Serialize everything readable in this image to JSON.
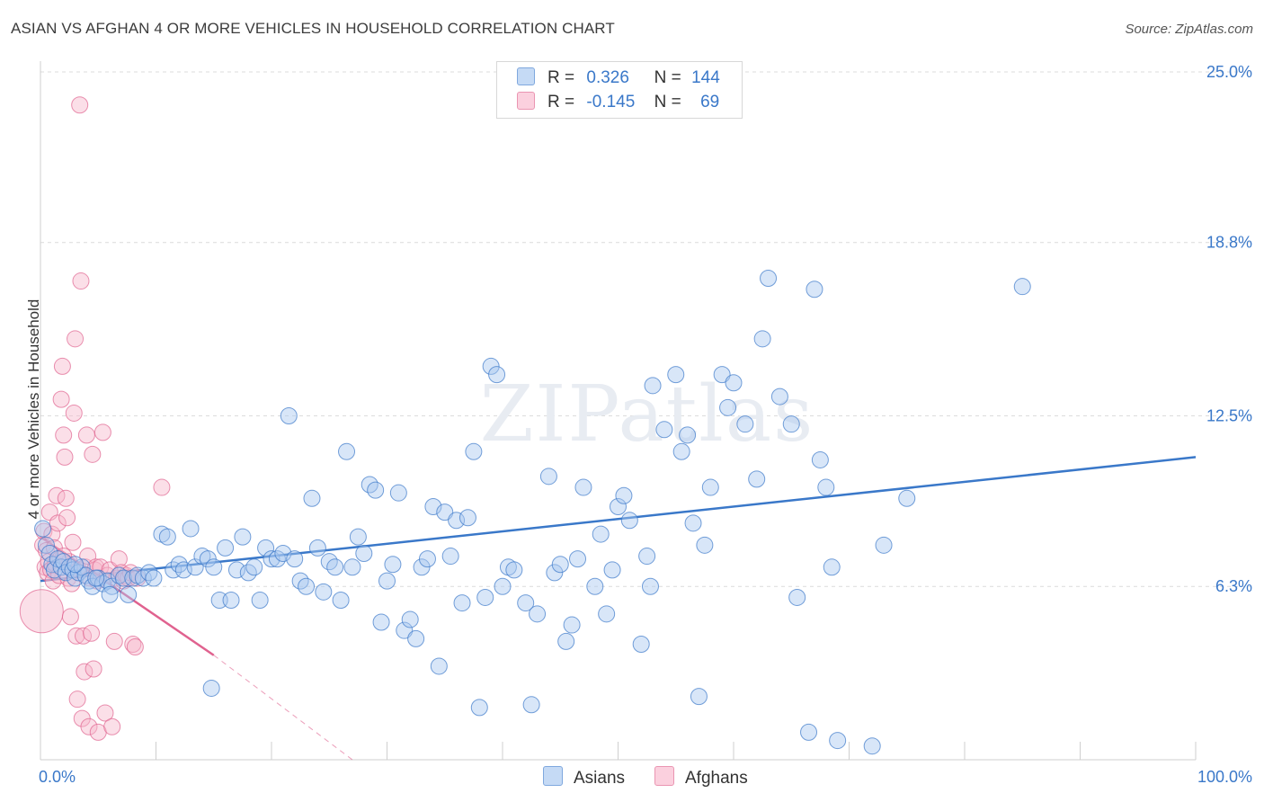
{
  "title": "ASIAN VS AFGHAN 4 OR MORE VEHICLES IN HOUSEHOLD CORRELATION CHART",
  "source": "Source: ZipAtlas.com",
  "watermark": "ZIPatlas",
  "legend": {
    "rows": [
      {
        "r_label": "R =",
        "r_value": "0.326",
        "n_label": "N =",
        "n_value": "144",
        "color": "#a9c8f0"
      },
      {
        "r_label": "R =",
        "r_value": "-0.145",
        "n_label": "N =",
        "n_value": "69",
        "color": "#f7b8cc"
      }
    ]
  },
  "bottom_legend": [
    {
      "label": "Asians",
      "color": "#a9c8f0"
    },
    {
      "label": "Afghans",
      "color": "#f7b8cc"
    }
  ],
  "chart_data": {
    "type": "scatter",
    "title": "ASIAN VS AFGHAN 4 OR MORE VEHICLES IN HOUSEHOLD CORRELATION CHART",
    "xlabel": "",
    "ylabel": "4 or more Vehicles in Household",
    "xlim": [
      0,
      100
    ],
    "ylim": [
      0,
      25.0
    ],
    "x_tick_labels": [
      "0.0%",
      "100.0%"
    ],
    "y_ticks": [
      6.3,
      12.5,
      18.8,
      25.0
    ],
    "y_tick_labels": [
      "6.3%",
      "12.5%",
      "18.8%",
      "25.0%"
    ],
    "grid": true,
    "series": [
      {
        "name": "Asians",
        "color": "#3a78c9",
        "fill": "#a9c8f0",
        "trend": {
          "x": [
            0,
            100
          ],
          "y": [
            6.5,
            11.0
          ]
        },
        "points": [
          [
            0.2,
            8.4
          ],
          [
            0.5,
            7.8
          ],
          [
            0.8,
            7.5
          ],
          [
            1.0,
            7.1
          ],
          [
            1.2,
            6.9
          ],
          [
            1.5,
            7.3
          ],
          [
            1.8,
            7.0
          ],
          [
            2.0,
            7.2
          ],
          [
            2.2,
            6.8
          ],
          [
            2.5,
            7.0
          ],
          [
            2.8,
            6.9
          ],
          [
            3.0,
            6.6
          ],
          [
            3.3,
            6.8
          ],
          [
            3.6,
            7.0
          ],
          [
            3.9,
            6.7
          ],
          [
            4.2,
            6.5
          ],
          [
            4.5,
            6.3
          ],
          [
            5.0,
            6.6
          ],
          [
            5.4,
            6.4
          ],
          [
            5.8,
            6.5
          ],
          [
            6.2,
            6.3
          ],
          [
            6.8,
            6.7
          ],
          [
            7.2,
            6.6
          ],
          [
            7.6,
            6.0
          ],
          [
            8.0,
            6.6
          ],
          [
            8.4,
            6.7
          ],
          [
            8.9,
            6.6
          ],
          [
            9.4,
            6.8
          ],
          [
            9.8,
            6.6
          ],
          [
            10.5,
            8.2
          ],
          [
            11.0,
            8.1
          ],
          [
            11.5,
            6.9
          ],
          [
            12.0,
            7.1
          ],
          [
            12.4,
            6.9
          ],
          [
            13.0,
            8.4
          ],
          [
            13.4,
            7.0
          ],
          [
            14.0,
            7.4
          ],
          [
            14.5,
            7.3
          ],
          [
            15.0,
            7.0
          ],
          [
            15.5,
            5.8
          ],
          [
            16.0,
            7.7
          ],
          [
            16.5,
            5.8
          ],
          [
            17.0,
            6.9
          ],
          [
            17.5,
            8.1
          ],
          [
            18.0,
            6.8
          ],
          [
            18.5,
            7.0
          ],
          [
            19.0,
            5.8
          ],
          [
            19.5,
            7.7
          ],
          [
            20.0,
            7.3
          ],
          [
            20.5,
            7.3
          ],
          [
            21.0,
            7.5
          ],
          [
            21.5,
            12.5
          ],
          [
            22.0,
            7.3
          ],
          [
            22.5,
            6.5
          ],
          [
            23.0,
            6.3
          ],
          [
            23.5,
            9.5
          ],
          [
            24.0,
            7.7
          ],
          [
            24.5,
            6.1
          ],
          [
            25.0,
            7.2
          ],
          [
            25.5,
            7.0
          ],
          [
            26.0,
            5.8
          ],
          [
            26.5,
            11.2
          ],
          [
            27.0,
            7.0
          ],
          [
            27.5,
            8.1
          ],
          [
            28.0,
            7.5
          ],
          [
            28.5,
            10.0
          ],
          [
            29.0,
            9.8
          ],
          [
            29.5,
            5.0
          ],
          [
            30.0,
            6.5
          ],
          [
            30.5,
            7.1
          ],
          [
            31.0,
            9.7
          ],
          [
            31.5,
            4.7
          ],
          [
            32.0,
            5.1
          ],
          [
            32.5,
            4.4
          ],
          [
            33.0,
            7.0
          ],
          [
            33.5,
            7.3
          ],
          [
            34.0,
            9.2
          ],
          [
            34.5,
            3.4
          ],
          [
            35.0,
            9.0
          ],
          [
            35.5,
            7.4
          ],
          [
            36.0,
            8.7
          ],
          [
            36.5,
            5.7
          ],
          [
            37.0,
            8.8
          ],
          [
            37.5,
            11.2
          ],
          [
            38.0,
            1.9
          ],
          [
            38.5,
            5.9
          ],
          [
            39.0,
            14.3
          ],
          [
            39.5,
            14.0
          ],
          [
            40.0,
            6.3
          ],
          [
            40.5,
            7.0
          ],
          [
            41.0,
            6.9
          ],
          [
            42.0,
            5.7
          ],
          [
            42.5,
            2.0
          ],
          [
            43.0,
            5.3
          ],
          [
            44.0,
            10.3
          ],
          [
            44.5,
            6.8
          ],
          [
            45.0,
            7.1
          ],
          [
            45.5,
            4.3
          ],
          [
            46.0,
            4.9
          ],
          [
            46.5,
            7.3
          ],
          [
            47.0,
            9.9
          ],
          [
            48.0,
            6.3
          ],
          [
            48.5,
            8.2
          ],
          [
            49.0,
            5.3
          ],
          [
            49.5,
            6.9
          ],
          [
            50.0,
            9.2
          ],
          [
            50.5,
            9.6
          ],
          [
            51.0,
            8.7
          ],
          [
            52.0,
            4.2
          ],
          [
            52.5,
            7.4
          ],
          [
            53.0,
            13.6
          ],
          [
            54.0,
            12.0
          ],
          [
            55.0,
            14.0
          ],
          [
            55.5,
            11.2
          ],
          [
            56.0,
            11.8
          ],
          [
            56.5,
            8.6
          ],
          [
            57.0,
            2.3
          ],
          [
            57.5,
            7.8
          ],
          [
            58.0,
            9.9
          ],
          [
            59.0,
            14.0
          ],
          [
            59.5,
            12.8
          ],
          [
            60.0,
            13.7
          ],
          [
            61.0,
            12.2
          ],
          [
            62.0,
            10.2
          ],
          [
            62.5,
            15.3
          ],
          [
            63.0,
            17.5
          ],
          [
            64.0,
            13.2
          ],
          [
            65.0,
            12.2
          ],
          [
            65.5,
            5.9
          ],
          [
            66.5,
            1.0
          ],
          [
            67.0,
            17.1
          ],
          [
            67.5,
            10.9
          ],
          [
            68.0,
            9.9
          ],
          [
            68.5,
            7.0
          ],
          [
            69.0,
            0.7
          ],
          [
            72.0,
            0.5
          ],
          [
            73.0,
            7.8
          ],
          [
            75.0,
            9.5
          ],
          [
            85.0,
            17.2
          ],
          [
            52.8,
            6.3
          ],
          [
            3.0,
            7.1
          ],
          [
            4.8,
            6.6
          ],
          [
            6.0,
            6.0
          ],
          [
            14.8,
            2.6
          ]
        ]
      },
      {
        "name": "Afghans",
        "color": "#e0628f",
        "fill": "#f7b8cc",
        "trend": {
          "x": [
            0,
            15
          ],
          "y": [
            8.1,
            3.8
          ]
        },
        "trend_extension": {
          "x": [
            15,
            27
          ],
          "y": [
            3.8,
            0.0
          ]
        },
        "points": [
          [
            0.1,
            5.4
          ],
          [
            0.2,
            7.8
          ],
          [
            0.3,
            8.3
          ],
          [
            0.4,
            7.0
          ],
          [
            0.5,
            7.6
          ],
          [
            0.6,
            6.8
          ],
          [
            0.7,
            7.2
          ],
          [
            0.8,
            9.0
          ],
          [
            0.9,
            6.9
          ],
          [
            1.0,
            8.2
          ],
          [
            1.1,
            6.5
          ],
          [
            1.2,
            7.7
          ],
          [
            1.3,
            7.1
          ],
          [
            1.4,
            9.6
          ],
          [
            1.5,
            8.6
          ],
          [
            1.6,
            6.7
          ],
          [
            1.7,
            7.3
          ],
          [
            1.8,
            13.1
          ],
          [
            1.9,
            14.3
          ],
          [
            2.0,
            11.8
          ],
          [
            2.1,
            11.0
          ],
          [
            2.2,
            9.5
          ],
          [
            2.3,
            8.8
          ],
          [
            2.4,
            6.6
          ],
          [
            2.5,
            7.2
          ],
          [
            2.6,
            5.2
          ],
          [
            2.7,
            6.4
          ],
          [
            2.8,
            7.9
          ],
          [
            2.9,
            12.6
          ],
          [
            3.0,
            15.3
          ],
          [
            3.1,
            4.5
          ],
          [
            3.2,
            2.2
          ],
          [
            3.3,
            6.9
          ],
          [
            3.4,
            23.8
          ],
          [
            3.5,
            17.4
          ],
          [
            3.6,
            1.5
          ],
          [
            3.7,
            4.5
          ],
          [
            3.8,
            3.2
          ],
          [
            3.9,
            7.0
          ],
          [
            4.0,
            11.8
          ],
          [
            4.1,
            7.4
          ],
          [
            4.2,
            1.2
          ],
          [
            4.3,
            6.6
          ],
          [
            4.4,
            4.6
          ],
          [
            4.5,
            11.1
          ],
          [
            4.6,
            3.3
          ],
          [
            4.7,
            6.9
          ],
          [
            4.8,
            7.0
          ],
          [
            4.9,
            6.5
          ],
          [
            5.0,
            1.0
          ],
          [
            5.2,
            7.0
          ],
          [
            5.4,
            11.9
          ],
          [
            5.6,
            1.7
          ],
          [
            5.8,
            6.7
          ],
          [
            6.0,
            6.9
          ],
          [
            6.2,
            1.2
          ],
          [
            6.4,
            4.3
          ],
          [
            6.6,
            6.6
          ],
          [
            6.8,
            7.3
          ],
          [
            7.0,
            6.8
          ],
          [
            7.2,
            6.5
          ],
          [
            7.4,
            6.7
          ],
          [
            7.6,
            6.6
          ],
          [
            7.8,
            6.8
          ],
          [
            8.0,
            4.2
          ],
          [
            8.2,
            4.1
          ],
          [
            8.4,
            6.6
          ],
          [
            10.5,
            9.9
          ],
          [
            2.0,
            7.4
          ]
        ]
      }
    ]
  }
}
